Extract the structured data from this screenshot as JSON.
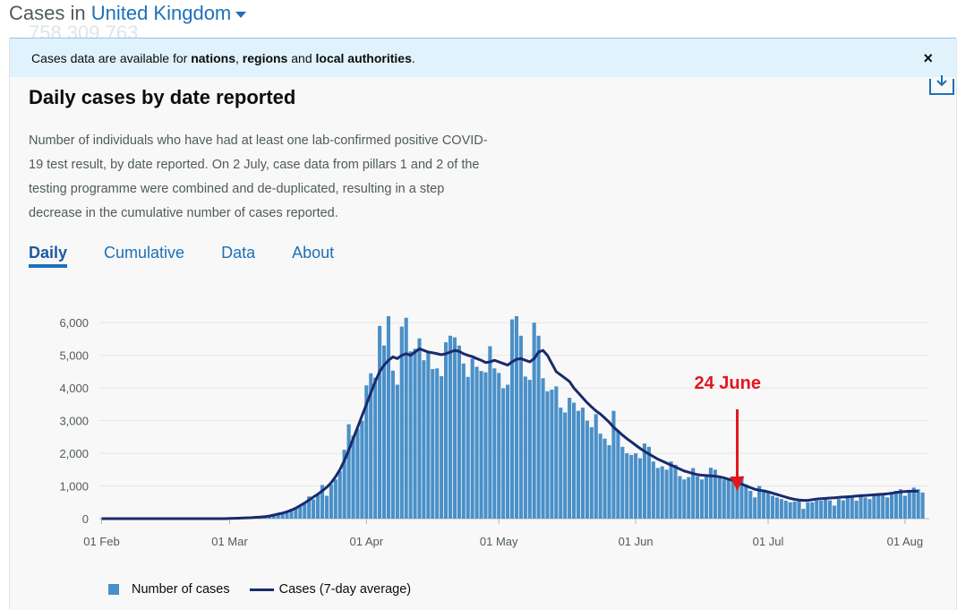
{
  "header": {
    "prefix": "Cases in ",
    "area": "United Kingdom",
    "ghost": "758 309,763"
  },
  "banner": {
    "text_1": "Cases data are available for ",
    "link_1": "nations",
    "sep_1": ", ",
    "link_2": "regions",
    "sep_2": " and ",
    "link_3": "local authorities",
    "end": ".",
    "close": "×"
  },
  "card": {
    "title": "Daily cases by date reported",
    "description": "Number of individuals who have had at least one lab-confirmed positive COVID-19 test result, by date reported. On 2 July, case data from pillars 1 and 2 of the testing programme were combined and de-duplicated, resulting in a step decrease in the cumulative number of cases reported.",
    "tabs": [
      "Daily",
      "Cumulative",
      "Data",
      "About"
    ],
    "active_tab": "Daily"
  },
  "legend": {
    "bar": "Number of cases",
    "line": "Cases (7-day average)"
  },
  "colors": {
    "bar": "#4a90c8",
    "line": "#1a2a6c",
    "annotation": "#e1171e",
    "accent": "#1d70b8"
  },
  "chart_data": {
    "type": "bar",
    "title": "",
    "xlabel": "",
    "ylabel": "",
    "ylim": [
      0,
      6500
    ],
    "yticks": [
      0,
      1000,
      2000,
      3000,
      4000,
      5000,
      6000
    ],
    "ytick_labels": [
      "0",
      "1,000",
      "2,000",
      "3,000",
      "4,000",
      "5,000",
      "6,000"
    ],
    "xticks": [
      "01 Feb",
      "01 Mar",
      "01 Apr",
      "01 May",
      "01 Jun",
      "01 Jul",
      "01 Aug"
    ],
    "x_start": "2020-02-01",
    "x_end": "2020-08-06",
    "grid": "horizontal",
    "legend_position": "bottom-left",
    "annotation": {
      "label": "24 June",
      "date": "2020-06-24"
    },
    "series": [
      {
        "name": "Number of cases",
        "type": "bar",
        "values": [
          0,
          0,
          0,
          0,
          0,
          0,
          0,
          0,
          0,
          0,
          0,
          0,
          0,
          0,
          0,
          0,
          0,
          0,
          0,
          0,
          0,
          0,
          0,
          0,
          0,
          0,
          0,
          0,
          0,
          10,
          10,
          15,
          20,
          25,
          30,
          30,
          40,
          50,
          80,
          130,
          160,
          190,
          200,
          300,
          330,
          400,
          500,
          680,
          590,
          740,
          1030,
          700,
          1050,
          1200,
          1450,
          2110,
          2890,
          2540,
          2750,
          3000,
          4080,
          4450,
          4320,
          5900,
          5300,
          6200,
          4530,
          4100,
          5880,
          6150,
          5120,
          5200,
          5520,
          4850,
          5100,
          4580,
          4600,
          4360,
          5400,
          5600,
          5550,
          5300,
          4750,
          4340,
          4900,
          4650,
          4520,
          4480,
          5280,
          4600,
          4460,
          3990,
          4100,
          6100,
          6200,
          5600,
          4350,
          4250,
          6000,
          5600,
          4300,
          3900,
          3950,
          4050,
          3400,
          3250,
          3700,
          3550,
          3300,
          3400,
          3000,
          2800,
          3200,
          2600,
          2450,
          2250,
          3300,
          2700,
          2200,
          2000,
          1950,
          2000,
          1850,
          2300,
          2200,
          1750,
          1550,
          1600,
          1500,
          1750,
          1650,
          1300,
          1200,
          1270,
          1550,
          1300,
          1200,
          1350,
          1560,
          1500,
          1300,
          1200,
          1250,
          1150,
          1000,
          1300,
          1050,
          850,
          650,
          1000,
          890,
          800,
          700,
          650,
          600,
          550,
          500,
          520,
          530,
          300,
          500,
          500,
          550,
          550,
          600,
          560,
          400,
          600,
          560,
          700,
          690,
          550,
          750,
          650,
          600,
          750,
          750,
          780,
          650,
          750,
          850,
          900,
          700,
          850,
          950,
          900,
          800
        ]
      },
      {
        "name": "Cases (7-day average)",
        "type": "line",
        "values": [
          0,
          0,
          0,
          0,
          0,
          0,
          0,
          0,
          0,
          0,
          0,
          0,
          0,
          0,
          0,
          0,
          0,
          0,
          0,
          0,
          0,
          0,
          0,
          0,
          0,
          0,
          0,
          0,
          0,
          5,
          10,
          15,
          20,
          25,
          30,
          40,
          50,
          60,
          80,
          110,
          140,
          170,
          210,
          260,
          320,
          400,
          480,
          570,
          660,
          750,
          850,
          960,
          1100,
          1280,
          1500,
          1780,
          2100,
          2450,
          2800,
          3150,
          3500,
          3850,
          4200,
          4500,
          4700,
          4850,
          4950,
          4900,
          5000,
          5050,
          5000,
          5100,
          5200,
          5150,
          5100,
          5080,
          5050,
          5020,
          5050,
          5100,
          5150,
          5120,
          5050,
          5000,
          4960,
          4900,
          4850,
          4780,
          4800,
          4850,
          4800,
          4750,
          4700,
          4800,
          4880,
          4900,
          4850,
          4800,
          4900,
          5100,
          5150,
          5000,
          4750,
          4500,
          4400,
          4300,
          4200,
          4000,
          3850,
          3700,
          3550,
          3420,
          3300,
          3200,
          3080,
          2950,
          2800,
          2680,
          2560,
          2450,
          2350,
          2250,
          2150,
          2060,
          1980,
          1900,
          1820,
          1760,
          1700,
          1640,
          1580,
          1520,
          1460,
          1420,
          1380,
          1350,
          1330,
          1320,
          1310,
          1300,
          1280,
          1250,
          1210,
          1170,
          1120,
          1060,
          1000,
          950,
          900,
          870,
          850,
          820,
          780,
          740,
          700,
          660,
          620,
          590,
          570,
          560,
          560,
          580,
          600,
          610,
          620,
          630,
          640,
          650,
          660,
          670,
          680,
          690,
          700,
          710,
          720,
          730,
          740,
          750,
          760,
          780,
          800,
          820,
          830,
          840,
          840,
          840
        ]
      }
    ]
  }
}
